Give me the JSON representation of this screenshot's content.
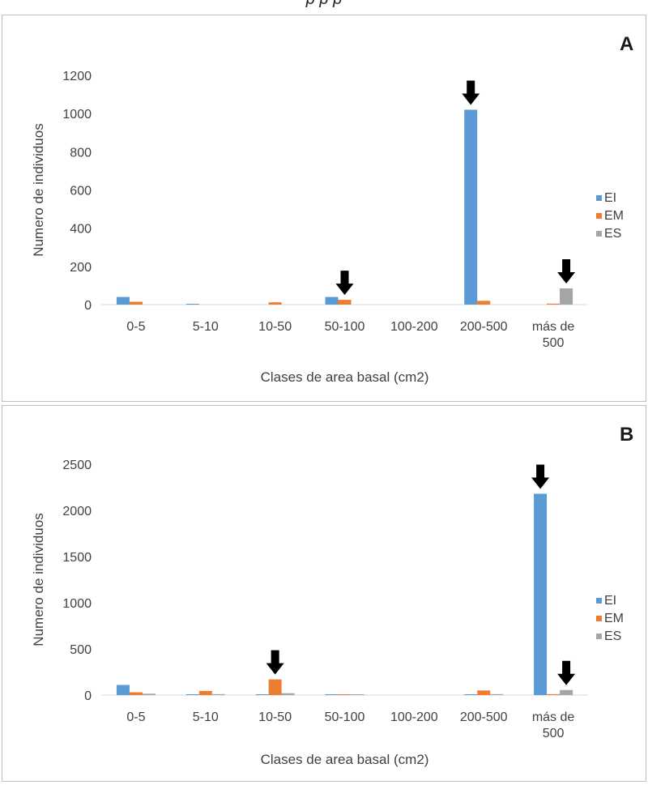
{
  "caption": "p                       p         p",
  "chart_data": [
    {
      "panel_label": "A",
      "type": "bar",
      "categories": [
        "0-5",
        "5-10",
        "10-50",
        "50-100",
        "100-200",
        "200-500",
        "más de 500"
      ],
      "category_lines": [
        [
          "0-5"
        ],
        [
          "5-10"
        ],
        [
          "10-50"
        ],
        [
          "50-100"
        ],
        [
          "100-200"
        ],
        [
          "200-500"
        ],
        [
          "más de",
          "500"
        ]
      ],
      "series": [
        {
          "name": "EI",
          "values": [
            40,
            3,
            0,
            40,
            0,
            1020,
            0
          ]
        },
        {
          "name": "EM",
          "values": [
            15,
            0,
            12,
            25,
            0,
            20,
            5
          ]
        },
        {
          "name": "ES",
          "values": [
            0,
            0,
            0,
            0,
            0,
            0,
            85
          ]
        }
      ],
      "colors": [
        "#5b9bd5",
        "#ed7d31",
        "#a5a5a5"
      ],
      "xlabel": "Clases de area basal (cm2)",
      "ylabel": "Numero de individuos",
      "ylim": [
        0,
        1200
      ],
      "yticks": [
        0,
        200,
        400,
        600,
        800,
        1000,
        1200
      ],
      "arrows": [
        {
          "category": 3,
          "series": 1
        },
        {
          "category": 5,
          "series": 0
        },
        {
          "category": 6,
          "series": 2
        }
      ],
      "legend": "right",
      "grid": false
    },
    {
      "panel_label": "B",
      "type": "bar",
      "categories": [
        "0-5",
        "5-10",
        "10-50",
        "50-100",
        "100-200",
        "200-500",
        "más de 500"
      ],
      "category_lines": [
        [
          "0-5"
        ],
        [
          "5-10"
        ],
        [
          "10-50"
        ],
        [
          "50-100"
        ],
        [
          "100-200"
        ],
        [
          "200-500"
        ],
        [
          "más de",
          "500"
        ]
      ],
      "series": [
        {
          "name": "EI",
          "values": [
            110,
            5,
            5,
            5,
            0,
            5,
            2180
          ]
        },
        {
          "name": "EM",
          "values": [
            30,
            45,
            170,
            8,
            0,
            50,
            10
          ]
        },
        {
          "name": "ES",
          "values": [
            15,
            10,
            20,
            5,
            0,
            10,
            55
          ]
        }
      ],
      "colors": [
        "#5b9bd5",
        "#ed7d31",
        "#a5a5a5"
      ],
      "xlabel": "Clases de area basal (cm2)",
      "ylabel": "Numero de individuos",
      "ylim": [
        0,
        2500
      ],
      "yticks": [
        0,
        500,
        1000,
        1500,
        2000,
        2500
      ],
      "arrows": [
        {
          "category": 2,
          "series": 1
        },
        {
          "category": 6,
          "series": 0
        },
        {
          "category": 6,
          "series": 2
        }
      ],
      "legend": "right",
      "grid": false
    }
  ]
}
